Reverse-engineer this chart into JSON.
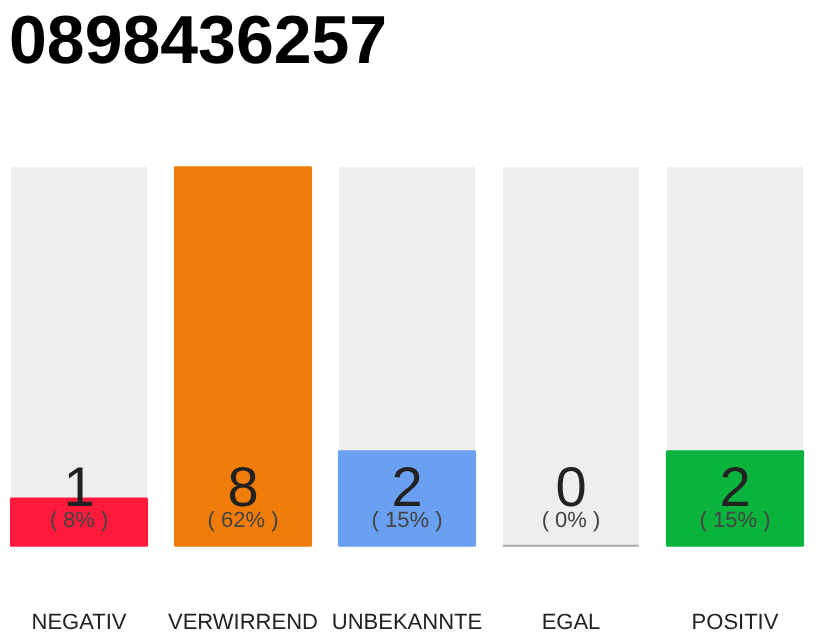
{
  "chart_data": {
    "type": "bar",
    "title": "0898436257",
    "categories": [
      "NEGATIV",
      "VERWIRREND",
      "UNBEKANNTE",
      "EGAL",
      "POSITIV"
    ],
    "values": [
      1,
      8,
      2,
      0,
      2
    ],
    "colors": [
      "#ff1a3c",
      "#f07d0a",
      "#6aa0f0",
      "#aaaaaa",
      "#0ab43c"
    ],
    "data_labels": true,
    "annotations": [
      "( 8% )",
      "( 62% )",
      "( 15% )",
      "( 0% )",
      "( 15% )"
    ],
    "grid": false
  }
}
